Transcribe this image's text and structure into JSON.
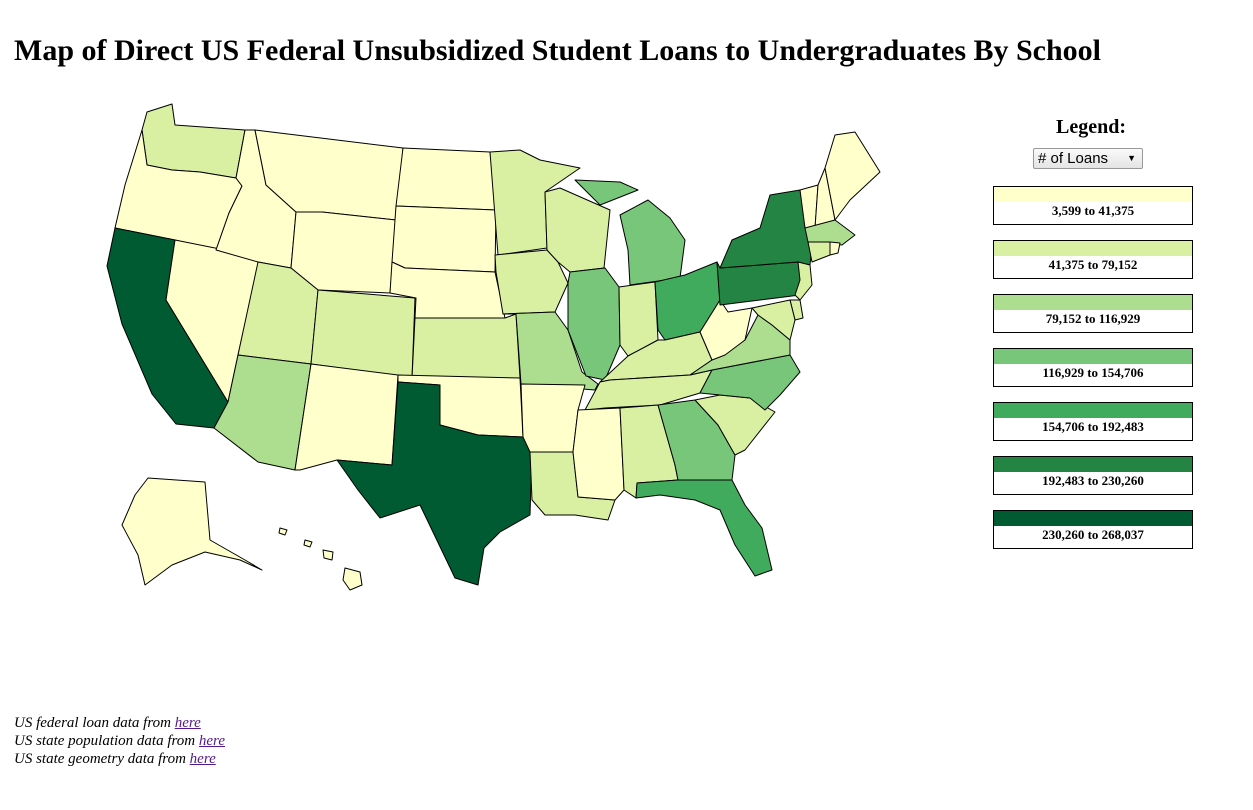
{
  "title": "Map of Direct US Federal Unsubsidized Student Loans to Undergraduates By School",
  "legend": {
    "title": "Legend:",
    "selected_metric": "# of Loans",
    "bins": [
      {
        "label": "3,599 to 41,375",
        "color": "#ffffcc"
      },
      {
        "label": "41,375 to 79,152",
        "color": "#d9f0a3"
      },
      {
        "label": "79,152 to 116,929",
        "color": "#addd8e"
      },
      {
        "label": "116,929 to 154,706",
        "color": "#78c679"
      },
      {
        "label": "154,706 to 192,483",
        "color": "#41ab5d"
      },
      {
        "label": "192,483 to 230,260",
        "color": "#238443"
      },
      {
        "label": "230,260 to 268,037",
        "color": "#005a32"
      }
    ]
  },
  "state_bins": {
    "WA": 1,
    "OR": 0,
    "CA": 6,
    "NV": 0,
    "ID": 0,
    "MT": 0,
    "WY": 0,
    "UT": 1,
    "AZ": 2,
    "CO": 1,
    "NM": 0,
    "ND": 0,
    "SD": 0,
    "NE": 0,
    "KS": 1,
    "OK": 0,
    "TX": 6,
    "MN": 1,
    "IA": 1,
    "MO": 2,
    "AR": 0,
    "LA": 1,
    "WI": 1,
    "IL": 3,
    "MI": 3,
    "IN": 1,
    "OH": 4,
    "KY": 1,
    "TN": 1,
    "MS": 0,
    "AL": 1,
    "GA": 3,
    "FL": 4,
    "SC": 1,
    "NC": 3,
    "VA": 2,
    "WV": 0,
    "PA": 5,
    "NY": 5,
    "ME": 0,
    "NH": 0,
    "VT": 0,
    "MA": 2,
    "CT": 1,
    "RI": 0,
    "NJ": 1,
    "DE": 1,
    "MD": 1,
    "AK": 0,
    "HI": 0
  },
  "sources": [
    {
      "text": "US federal loan data from ",
      "link": "here"
    },
    {
      "text": "US state population data from ",
      "link": "here"
    },
    {
      "text": "US state geometry data from ",
      "link": "here"
    }
  ]
}
